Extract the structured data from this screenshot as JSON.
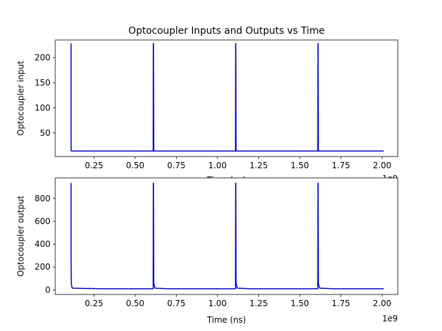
{
  "title": "Optocoupler Inputs and Outputs vs Time",
  "colors": {
    "line": "#0000cc",
    "axes": "#000000",
    "background": "#ffffff"
  },
  "chart_data": [
    {
      "type": "line",
      "title": "Optocoupler Inputs and Outputs vs Time",
      "xlabel": "Time (ns)",
      "ylabel": "Optocoupler input",
      "x_offset_label": "1e9",
      "xlim": [
        0.0145,
        2.0955
      ],
      "ylim": [
        3,
        235
      ],
      "xticks": [
        0.25,
        0.5,
        0.75,
        1.0,
        1.25,
        1.5,
        1.75,
        2.0
      ],
      "xtick_labels": [
        "0.25",
        "0.50",
        "0.75",
        "1.00",
        "1.25",
        "1.50",
        "1.75",
        "2.00"
      ],
      "yticks": [
        50,
        100,
        150,
        200
      ],
      "ytick_labels": [
        "50",
        "100",
        "150",
        "200"
      ],
      "grid": false,
      "series": [
        {
          "color": "#0000cc",
          "x": [
            0.11,
            0.1105,
            0.111,
            0.113,
            0.2,
            0.3,
            0.4,
            0.5,
            0.6,
            0.6095,
            0.6105,
            0.6115,
            0.613,
            0.7,
            0.8,
            0.9,
            1.0,
            1.1,
            1.1095,
            1.1105,
            1.1115,
            1.113,
            1.2,
            1.3,
            1.4,
            1.5,
            1.6,
            1.6095,
            1.6105,
            1.6115,
            1.613,
            1.7,
            1.8,
            1.9,
            2.0,
            2.01
          ],
          "y": [
            228,
            228,
            15,
            14,
            14,
            14,
            14,
            14,
            14,
            14,
            228,
            228,
            14,
            14,
            14,
            14,
            14,
            14,
            14,
            228,
            228,
            14,
            14,
            14,
            14,
            14,
            14,
            14,
            228,
            228,
            14,
            14,
            14,
            14,
            14,
            14
          ]
        }
      ]
    },
    {
      "type": "line",
      "xlabel": "Time (ns)",
      "ylabel": "Optocoupler output",
      "x_offset_label": "1e9",
      "xlim": [
        0.0145,
        2.0955
      ],
      "ylim": [
        -40,
        980
      ],
      "xticks": [
        0.25,
        0.5,
        0.75,
        1.0,
        1.25,
        1.5,
        1.75,
        2.0
      ],
      "xtick_labels": [
        "0.25",
        "0.50",
        "0.75",
        "1.00",
        "1.25",
        "1.50",
        "1.75",
        "2.00"
      ],
      "yticks": [
        0,
        200,
        400,
        600,
        800
      ],
      "ytick_labels": [
        "0",
        "200",
        "400",
        "600",
        "800"
      ],
      "grid": false,
      "series": [
        {
          "color": "#0000cc",
          "x": [
            0.11,
            0.1105,
            0.111,
            0.112,
            0.115,
            0.12,
            0.2,
            0.3,
            0.4,
            0.5,
            0.6,
            0.6095,
            0.6105,
            0.6115,
            0.613,
            0.62,
            0.7,
            0.8,
            0.9,
            1.0,
            1.1,
            1.1095,
            1.1105,
            1.1115,
            1.113,
            1.12,
            1.2,
            1.3,
            1.4,
            1.5,
            1.6,
            1.6095,
            1.6105,
            1.6115,
            1.613,
            1.62,
            1.7,
            1.8,
            1.9,
            2.0,
            2.01
          ],
          "y": [
            935,
            935,
            200,
            60,
            25,
            15,
            12,
            10,
            10,
            10,
            10,
            10,
            935,
            935,
            60,
            15,
            10,
            10,
            10,
            10,
            10,
            10,
            935,
            935,
            60,
            15,
            10,
            10,
            10,
            10,
            10,
            10,
            935,
            935,
            60,
            15,
            10,
            10,
            10,
            10,
            10
          ]
        }
      ]
    }
  ]
}
